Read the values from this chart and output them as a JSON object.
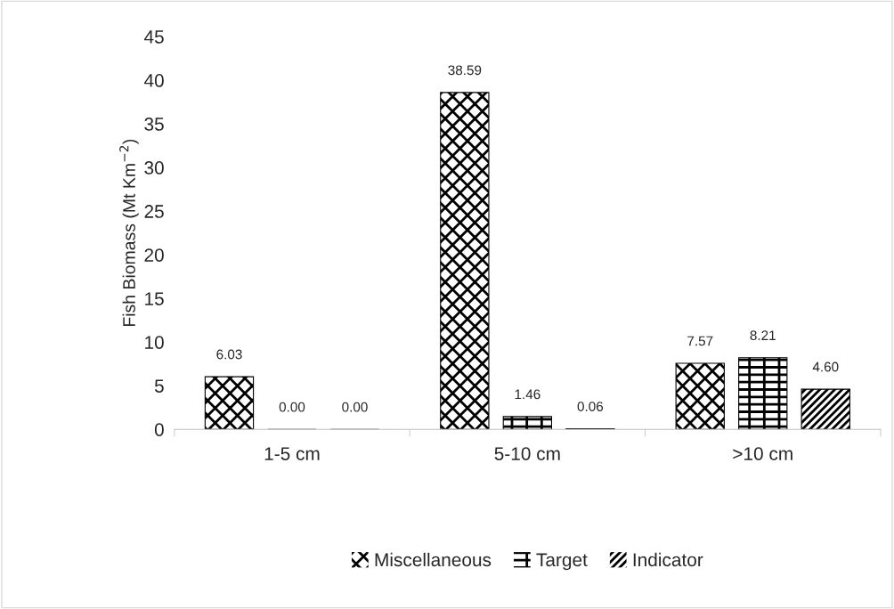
{
  "chart_data": {
    "type": "bar",
    "ylabel": "Fish Biomass (Mt Km$^{−2}$)",
    "categories": [
      "1-5 cm",
      "5-10 cm",
      ">10 cm"
    ],
    "series": [
      {
        "name": "Miscellaneous",
        "color": "#000000",
        "values": [
          6.03,
          38.59,
          7.57
        ],
        "value_labels": [
          "6.03",
          "38.59",
          "7.57"
        ]
      },
      {
        "name": "Target",
        "color": "#000000",
        "values": [
          0,
          1.46,
          8.21
        ],
        "value_labels": [
          "0.00",
          "1.46",
          "8.21"
        ]
      },
      {
        "name": "Indicator",
        "color": "#000000",
        "values": [
          0,
          0.06,
          4.6
        ],
        "value_labels": [
          "0.00",
          "0.06",
          "4.60"
        ]
      }
    ],
    "ylim": [
      0,
      45
    ],
    "yticks": [
      0,
      5,
      10,
      15,
      20,
      25,
      30,
      35,
      40,
      45
    ],
    "grid": false,
    "legend": "bottom"
  }
}
